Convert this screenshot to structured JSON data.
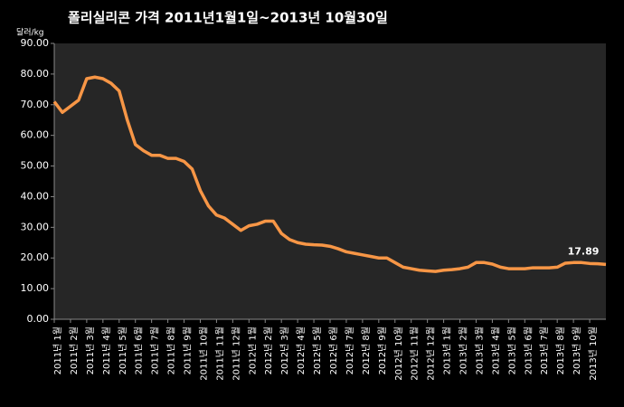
{
  "chart_data": {
    "type": "line",
    "title": "폴리실리콘 가격   2011년1월1일~2013년 10월30일",
    "y_label": "달러/kg",
    "categories": [
      "2011년 1월",
      null,
      "2011년 2월",
      null,
      "2011년 3월",
      null,
      "2011년 4월",
      null,
      "2011년 5월",
      null,
      "2011년 6월",
      null,
      "2011년 7월",
      null,
      "2011년 8월",
      null,
      "2011년 9월",
      null,
      "2011년 10월",
      null,
      "2011년 11월",
      null,
      "2011년 12월",
      null,
      "2012년 1월",
      null,
      "2012년 2월",
      null,
      "2012년 3월",
      null,
      "2012년 4월",
      null,
      "2012년 5월",
      null,
      "2012년 6월",
      null,
      "2012년 7월",
      null,
      "2012년 8월",
      null,
      "2012년 9월",
      null,
      "2012년 10월",
      null,
      "2012년 11월",
      null,
      "2012년 12월",
      null,
      "2013년 1월",
      null,
      "2013년 2월",
      null,
      "2013년 3월",
      null,
      "2013년 4월",
      null,
      "2013년 5월",
      null,
      "2013년 6월",
      null,
      "2013년 7월",
      null,
      "2013년 8월",
      null,
      "2013년 9월",
      null,
      "2013년 10월",
      null,
      null
    ],
    "values": [
      71,
      67.5,
      69.5,
      71.5,
      78.5,
      79,
      78.5,
      77,
      74.5,
      65,
      57,
      55,
      53.5,
      53.5,
      52.5,
      52.5,
      51.5,
      49,
      42,
      37,
      34,
      33,
      31,
      29,
      30.5,
      31,
      32,
      32,
      28,
      26,
      25,
      24.5,
      24.3,
      24.2,
      23.8,
      23,
      22,
      21.5,
      21,
      20.5,
      20,
      20,
      18.5,
      17,
      16.5,
      16,
      15.8,
      15.6,
      16,
      16.2,
      16.5,
      17,
      18.5,
      18.5,
      18,
      17,
      16.5,
      16.5,
      16.5,
      16.8,
      16.8,
      16.8,
      17,
      18.3,
      18.5,
      18.5,
      18.2,
      18.1,
      17.89
    ],
    "color": "#f79646",
    "label_last_value": true,
    "ylim": [
      0,
      90
    ],
    "yticks": [
      {
        "value": 0,
        "label": "0.00"
      },
      {
        "value": 10,
        "label": "10.00"
      },
      {
        "value": 20,
        "label": "20.00"
      },
      {
        "value": 30,
        "label": "30.00"
      },
      {
        "value": 40,
        "label": "40.00"
      },
      {
        "value": 50,
        "label": "50.00"
      },
      {
        "value": 60,
        "label": "60.00"
      },
      {
        "value": 70,
        "label": "70.00"
      },
      {
        "value": 80,
        "label": "80.00"
      },
      {
        "value": 90,
        "label": "90.00"
      }
    ],
    "grid": false
  }
}
